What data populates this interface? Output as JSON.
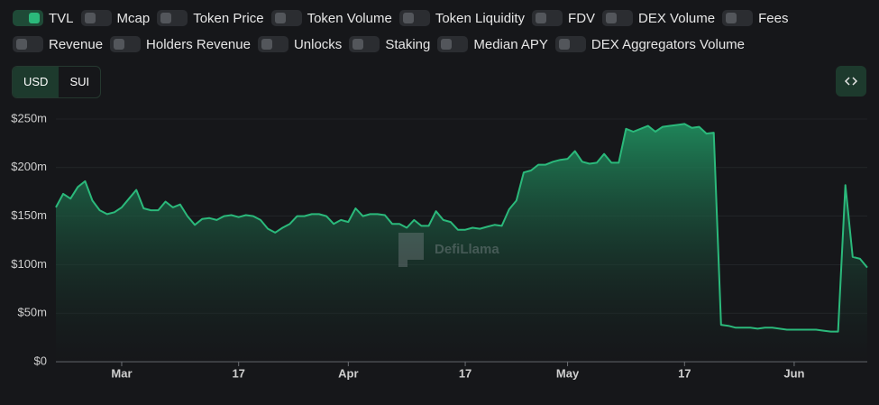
{
  "toggle_rows": [
    [
      {
        "label": "TVL",
        "on": true
      },
      {
        "label": "Mcap",
        "on": false
      },
      {
        "label": "Token Price",
        "on": false
      },
      {
        "label": "Token Volume",
        "on": false
      },
      {
        "label": "Token Liquidity",
        "on": false
      },
      {
        "label": "FDV",
        "on": false
      },
      {
        "label": "DEX Volume",
        "on": false
      },
      {
        "label": "Fees",
        "on": false
      }
    ],
    [
      {
        "label": "Revenue",
        "on": false
      },
      {
        "label": "Holders Revenue",
        "on": false
      },
      {
        "label": "Unlocks",
        "on": false
      },
      {
        "label": "Staking",
        "on": false
      },
      {
        "label": "Median APY",
        "on": false
      },
      {
        "label": "DEX Aggregators Volume",
        "on": false
      }
    ]
  ],
  "currency": {
    "options": [
      "USD",
      "SUI"
    ],
    "selected": 0
  },
  "watermark": "DefiLlama",
  "chart_data": {
    "type": "area",
    "categories": [
      null,
      null,
      null,
      null,
      null,
      null,
      null,
      null,
      null,
      "Mar",
      null,
      null,
      null,
      null,
      null,
      null,
      null,
      null,
      null,
      null,
      null,
      null,
      null,
      null,
      null,
      "17",
      null,
      null,
      null,
      null,
      null,
      null,
      null,
      null,
      null,
      null,
      null,
      null,
      null,
      null,
      "Apr",
      null,
      null,
      null,
      null,
      null,
      null,
      null,
      null,
      null,
      null,
      null,
      null,
      null,
      null,
      null,
      "17",
      null,
      null,
      null,
      null,
      null,
      null,
      null,
      null,
      null,
      null,
      null,
      null,
      null,
      "May",
      null,
      null,
      null,
      null,
      null,
      null,
      null,
      null,
      null,
      null,
      null,
      null,
      null,
      null,
      null,
      "17",
      null,
      null,
      null,
      null,
      null,
      null,
      null,
      null,
      null,
      null,
      null,
      null,
      null,
      null,
      "Jun",
      null,
      null,
      null,
      null,
      null,
      null,
      null,
      null,
      null,
      null
    ],
    "series": [
      {
        "name": "TVL",
        "color": "#2bb97b",
        "values": [
          159,
          173,
          168,
          180,
          186,
          166,
          156,
          152,
          154,
          159,
          168,
          177,
          158,
          156,
          156,
          165,
          159,
          162,
          150,
          141,
          147,
          148,
          146,
          150,
          151,
          149,
          151,
          150,
          146,
          137,
          133,
          138,
          142,
          150,
          150,
          152,
          152,
          150,
          142,
          146,
          144,
          158,
          150,
          152,
          152,
          151,
          142,
          142,
          138,
          146,
          140,
          140,
          155,
          146,
          144,
          136,
          136,
          138,
          137,
          139,
          141,
          140,
          157,
          166,
          195,
          197,
          203,
          203,
          206,
          208,
          209,
          217,
          206,
          204,
          205,
          214,
          205,
          205,
          240,
          237,
          240,
          243,
          237,
          242,
          243,
          244,
          245,
          241,
          242,
          235,
          236,
          38,
          37,
          35,
          35,
          35,
          34,
          35,
          35,
          34,
          33,
          33,
          33,
          33,
          33,
          32,
          31,
          31,
          182,
          108,
          106,
          97
        ]
      }
    ],
    "ylim": [
      0,
      250
    ],
    "yticks": [
      {
        "value": 0,
        "label": "$0"
      },
      {
        "value": 50,
        "label": "$50m"
      },
      {
        "value": 100,
        "label": "$100m"
      },
      {
        "value": 150,
        "label": "$150m"
      },
      {
        "value": 200,
        "label": "$200m"
      },
      {
        "value": 250,
        "label": "$250m"
      }
    ],
    "grid": true
  }
}
